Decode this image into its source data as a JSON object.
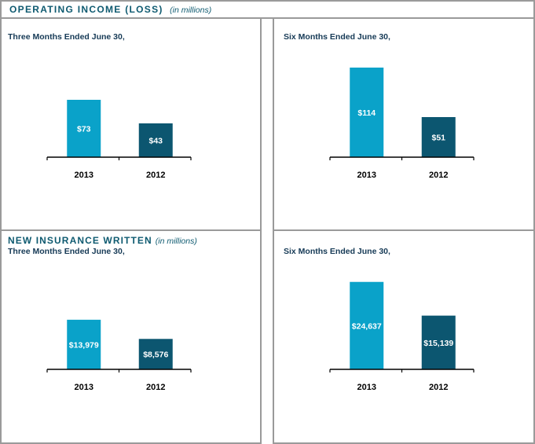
{
  "header": {
    "title": "OPERATING INCOME (LOSS)",
    "unit": "(in millions)"
  },
  "section2": {
    "title": "NEW INSURANCE WRITTEN",
    "unit": "(in millions)"
  },
  "colors": {
    "bar_2013": "#0aa2c9",
    "bar_2012": "#0c5670",
    "accent_text": "#0e5a70",
    "border": "#9a9a9a"
  },
  "chart_data": [
    {
      "type": "bar",
      "period": "Three Months Ended June 30,",
      "categories": [
        "2013",
        "2012"
      ],
      "values": [
        73,
        43
      ],
      "labels": [
        "$73",
        "$43"
      ],
      "ylim": [
        0,
        140
      ]
    },
    {
      "type": "bar",
      "period": "Six Months Ended June 30,",
      "categories": [
        "2013",
        "2012"
      ],
      "values": [
        114,
        51
      ],
      "labels": [
        "$114",
        "$51"
      ],
      "ylim": [
        0,
        140
      ]
    },
    {
      "type": "bar",
      "period": "Three Months Ended June 30,",
      "categories": [
        "2013",
        "2012"
      ],
      "values": [
        13979,
        8576
      ],
      "labels": [
        "$13,979",
        "$8,576"
      ],
      "ylim": [
        0,
        31000
      ]
    },
    {
      "type": "bar",
      "period": "Six Months Ended June 30,",
      "categories": [
        "2013",
        "2012"
      ],
      "values": [
        24637,
        15139
      ],
      "labels": [
        "$24,637",
        "$15,139"
      ],
      "ylim": [
        0,
        31000
      ]
    }
  ]
}
